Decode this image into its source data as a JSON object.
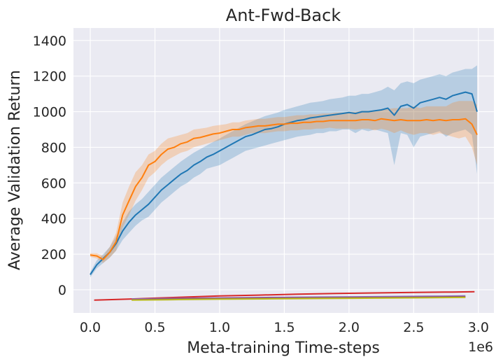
{
  "chart_data": {
    "type": "line",
    "title": "Ant-Fwd-Back",
    "xlabel": "Meta-training Time-steps",
    "ylabel": "Average Validation Return",
    "x_offset_label": "1e6",
    "xlim": [
      -0.13,
      3.12
    ],
    "ylim": [
      -130,
      1470
    ],
    "x_ticks": [
      0.0,
      0.5,
      1.0,
      1.5,
      2.0,
      2.5,
      3.0
    ],
    "x_tick_labels": [
      "0.0",
      "0.5",
      "1.0",
      "1.5",
      "2.0",
      "2.5",
      "3.0"
    ],
    "y_ticks": [
      0,
      200,
      400,
      600,
      800,
      1000,
      1200,
      1400
    ],
    "y_tick_labels": [
      "0",
      "200",
      "400",
      "600",
      "800",
      "1000",
      "1200",
      "1400"
    ],
    "grid": true,
    "legend": "none",
    "background": "#eaeaf2",
    "series": [
      {
        "color": "#1f77b4",
        "band_opacity": 0.25,
        "x": [
          0.0,
          0.05,
          0.1,
          0.15,
          0.2,
          0.25,
          0.3,
          0.35,
          0.4,
          0.45,
          0.5,
          0.55,
          0.6,
          0.65,
          0.7,
          0.75,
          0.8,
          0.85,
          0.9,
          0.95,
          1.0,
          1.05,
          1.1,
          1.15,
          1.2,
          1.25,
          1.3,
          1.35,
          1.4,
          1.45,
          1.5,
          1.55,
          1.6,
          1.65,
          1.7,
          1.75,
          1.8,
          1.85,
          1.9,
          1.95,
          2.0,
          2.05,
          2.1,
          2.15,
          2.2,
          2.25,
          2.3,
          2.35,
          2.4,
          2.45,
          2.5,
          2.55,
          2.6,
          2.65,
          2.7,
          2.75,
          2.8,
          2.85,
          2.9,
          2.95,
          2.99
        ],
        "mean": [
          85,
          140,
          175,
          210,
          260,
          330,
          380,
          420,
          450,
          480,
          520,
          560,
          590,
          620,
          650,
          670,
          700,
          720,
          745,
          760,
          780,
          800,
          820,
          840,
          860,
          870,
          885,
          900,
          905,
          915,
          930,
          940,
          950,
          955,
          965,
          970,
          975,
          980,
          985,
          990,
          995,
          990,
          1000,
          1000,
          1005,
          1010,
          1020,
          980,
          1030,
          1040,
          1020,
          1050,
          1060,
          1070,
          1080,
          1070,
          1090,
          1100,
          1110,
          1100,
          1000
        ],
        "lower": [
          70,
          120,
          150,
          180,
          220,
          280,
          320,
          360,
          390,
          410,
          450,
          490,
          520,
          550,
          580,
          600,
          630,
          650,
          680,
          690,
          700,
          720,
          740,
          760,
          780,
          790,
          800,
          810,
          820,
          830,
          840,
          850,
          860,
          865,
          870,
          880,
          880,
          890,
          890,
          900,
          900,
          880,
          900,
          890,
          900,
          890,
          880,
          700,
          880,
          870,
          800,
          860,
          870,
          880,
          890,
          860,
          880,
          890,
          900,
          870,
          650
        ],
        "upper": [
          100,
          165,
          200,
          240,
          300,
          380,
          440,
          480,
          510,
          550,
          590,
          630,
          660,
          690,
          720,
          745,
          770,
          790,
          810,
          830,
          850,
          870,
          890,
          910,
          930,
          945,
          960,
          975,
          985,
          995,
          1010,
          1020,
          1030,
          1040,
          1050,
          1055,
          1060,
          1070,
          1075,
          1080,
          1090,
          1090,
          1100,
          1100,
          1110,
          1120,
          1140,
          1120,
          1160,
          1170,
          1160,
          1180,
          1190,
          1200,
          1210,
          1200,
          1220,
          1230,
          1240,
          1240,
          1260
        ]
      },
      {
        "color": "#ff7f0e",
        "band_opacity": 0.25,
        "x": [
          0.0,
          0.05,
          0.1,
          0.15,
          0.2,
          0.25,
          0.3,
          0.35,
          0.4,
          0.45,
          0.5,
          0.55,
          0.6,
          0.65,
          0.7,
          0.75,
          0.8,
          0.85,
          0.9,
          0.95,
          1.0,
          1.05,
          1.1,
          1.15,
          1.2,
          1.25,
          1.3,
          1.35,
          1.4,
          1.45,
          1.5,
          1.55,
          1.6,
          1.65,
          1.7,
          1.75,
          1.8,
          1.85,
          1.9,
          1.95,
          2.0,
          2.05,
          2.1,
          2.15,
          2.2,
          2.25,
          2.3,
          2.35,
          2.4,
          2.45,
          2.5,
          2.55,
          2.6,
          2.65,
          2.7,
          2.75,
          2.8,
          2.85,
          2.9,
          2.95,
          2.99
        ],
        "mean": [
          195,
          190,
          170,
          210,
          270,
          420,
          500,
          580,
          630,
          700,
          720,
          760,
          790,
          800,
          820,
          830,
          850,
          855,
          865,
          875,
          880,
          890,
          900,
          900,
          910,
          915,
          920,
          920,
          925,
          930,
          930,
          935,
          935,
          940,
          940,
          945,
          945,
          950,
          950,
          950,
          950,
          950,
          955,
          955,
          950,
          960,
          955,
          950,
          955,
          950,
          950,
          950,
          955,
          950,
          955,
          950,
          955,
          955,
          960,
          930,
          870
        ],
        "lower": [
          185,
          175,
          150,
          180,
          220,
          350,
          420,
          500,
          560,
          630,
          660,
          700,
          730,
          750,
          770,
          780,
          800,
          810,
          820,
          830,
          840,
          850,
          860,
          860,
          870,
          880,
          880,
          880,
          885,
          890,
          890,
          895,
          895,
          900,
          900,
          905,
          905,
          910,
          905,
          905,
          905,
          900,
          905,
          905,
          895,
          905,
          895,
          880,
          895,
          880,
          870,
          880,
          880,
          870,
          880,
          870,
          860,
          850,
          860,
          800,
          700
        ],
        "upper": [
          205,
          205,
          190,
          240,
          320,
          490,
          580,
          660,
          700,
          760,
          780,
          820,
          850,
          860,
          870,
          880,
          900,
          905,
          910,
          920,
          925,
          930,
          940,
          940,
          950,
          955,
          960,
          960,
          965,
          970,
          970,
          975,
          980,
          980,
          985,
          985,
          990,
          990,
          995,
          995,
          1000,
          1000,
          1005,
          1005,
          1005,
          1015,
          1015,
          1020,
          1020,
          1020,
          1030,
          1020,
          1030,
          1030,
          1030,
          1030,
          1050,
          1060,
          1060,
          1060,
          1040
        ]
      },
      {
        "color": "#d62728",
        "band_opacity": 0,
        "x": [
          0.03,
          0.1,
          0.3,
          0.5,
          0.7,
          1.0,
          1.3,
          1.6,
          1.9,
          2.2,
          2.5,
          2.8,
          2.97
        ],
        "mean": [
          -58,
          -57,
          -52,
          -47,
          -42,
          -35,
          -30,
          -25,
          -21,
          -18,
          -15,
          -13,
          -11
        ]
      },
      {
        "color": "#9467bd",
        "band_opacity": 0,
        "x": [
          0.32,
          0.6,
          1.0,
          1.4,
          1.8,
          2.2,
          2.6,
          2.9
        ],
        "mean": [
          -52,
          -49,
          -46,
          -43,
          -41,
          -39,
          -37,
          -35
        ]
      },
      {
        "color": "#8c564b",
        "band_opacity": 0,
        "x": [
          0.32,
          0.6,
          1.0,
          1.4,
          1.8,
          2.2,
          2.6,
          2.9
        ],
        "mean": [
          -56,
          -53,
          -50,
          -48,
          -46,
          -44,
          -42,
          -40
        ]
      },
      {
        "color": "#bcbd22",
        "band_opacity": 0,
        "x": [
          0.32,
          0.6,
          1.0,
          1.4,
          1.8,
          2.2,
          2.6,
          2.9
        ],
        "mean": [
          -58,
          -56,
          -53,
          -51,
          -49,
          -47,
          -45,
          -43
        ]
      }
    ]
  }
}
